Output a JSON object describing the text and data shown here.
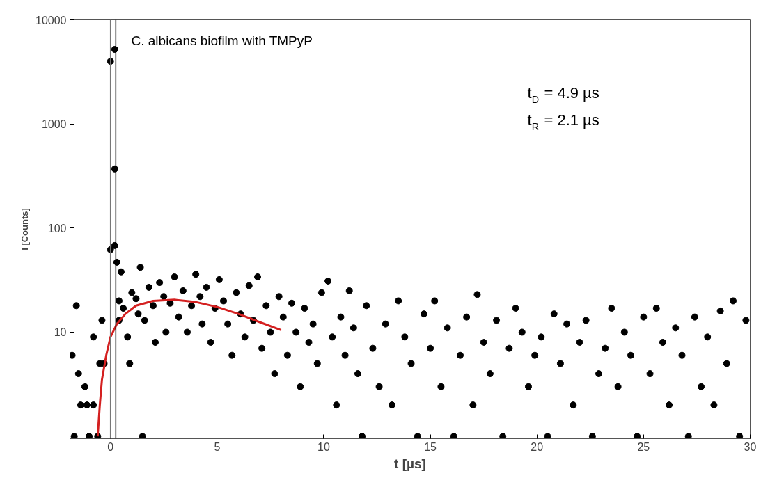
{
  "chart_data": {
    "type": "scatter",
    "xlabel": "t [µs]",
    "ylabel": "I [Counts]",
    "log": "y",
    "grid": false,
    "xlim": [
      -1.9,
      30
    ],
    "xticks": [
      0,
      5,
      10,
      15,
      20,
      25,
      30
    ],
    "ylim": [
      0.95,
      10000
    ],
    "yticks": [
      10,
      100,
      1000,
      10000
    ],
    "annotations": [
      "C. albicans biofilm with TMPyP",
      "t$_{D}$ = 4.9 µs",
      "t$_{R}$ = 2.1 µs"
    ],
    "ref_lines": [
      {
        "axis": "x",
        "value": 0,
        "label": null,
        "color": "#777777"
      },
      {
        "axis": "x",
        "value": 0.25,
        "label": null,
        "color": "#000000"
      }
    ],
    "series": [
      {
        "marker": "circle",
        "color": "#000000",
        "x": [
          -1.8,
          -1.7,
          -1.6,
          -1.5,
          -1.4,
          -1.2,
          -1.1,
          -1.0,
          -0.8,
          -0.8,
          -0.6,
          -0.5,
          -0.4,
          -0.3,
          0.0,
          0.0,
          0.2,
          0.2,
          0.2,
          0.3,
          0.4,
          0.4,
          0.5,
          0.6,
          0.8,
          0.9,
          1.0,
          1.2,
          1.3,
          1.4,
          1.5,
          1.6,
          1.8,
          2.0,
          2.1,
          2.3,
          2.5,
          2.6,
          2.8,
          3.0,
          3.2,
          3.4,
          3.6,
          3.8,
          4.0,
          4.2,
          4.3,
          4.5,
          4.7,
          4.9,
          5.1,
          5.3,
          5.5,
          5.7,
          5.9,
          6.1,
          6.3,
          6.5,
          6.7,
          6.9,
          7.1,
          7.3,
          7.5,
          7.7,
          7.9,
          8.1,
          8.3,
          8.5,
          8.7,
          8.9,
          9.1,
          9.3,
          9.5,
          9.7,
          9.9,
          10.2,
          10.4,
          10.6,
          10.8,
          11.0,
          11.2,
          11.4,
          11.6,
          11.8,
          12.0,
          12.3,
          12.6,
          12.9,
          13.2,
          13.5,
          13.8,
          14.1,
          14.4,
          14.7,
          15.0,
          15.2,
          15.5,
          15.8,
          16.1,
          16.4,
          16.7,
          17.0,
          17.2,
          17.5,
          17.8,
          18.1,
          18.4,
          18.7,
          19.0,
          19.3,
          19.6,
          19.9,
          20.2,
          20.5,
          20.8,
          21.1,
          21.4,
          21.7,
          22.0,
          22.3,
          22.6,
          22.9,
          23.2,
          23.5,
          23.8,
          24.1,
          24.4,
          24.7,
          25.0,
          25.3,
          25.6,
          25.9,
          26.2,
          26.5,
          26.8,
          27.1,
          27.4,
          27.7,
          28.0,
          28.3,
          28.6,
          28.9,
          29.2,
          29.5,
          29.8
        ],
        "values": [
          6,
          1,
          18,
          4,
          2,
          3,
          2,
          1,
          9,
          2,
          1,
          5,
          13,
          5,
          62,
          4000,
          5200,
          370,
          68,
          47,
          20,
          13,
          38,
          17,
          9,
          5,
          24,
          21,
          15,
          42,
          1,
          13,
          27,
          18,
          8,
          30,
          22,
          10,
          19,
          34,
          14,
          25,
          10,
          18,
          36,
          22,
          12,
          27,
          8,
          17,
          32,
          20,
          12,
          6,
          24,
          15,
          9,
          28,
          13,
          34,
          7,
          18,
          10,
          4,
          22,
          14,
          6,
          19,
          10,
          3,
          17,
          8,
          12,
          5,
          24,
          31,
          9,
          2,
          14,
          6,
          25,
          11,
          4,
          1,
          18,
          7,
          3,
          12,
          2,
          20,
          9,
          5,
          1,
          15,
          7,
          20,
          3,
          11,
          1,
          6,
          14,
          2,
          23,
          8,
          4,
          13,
          1,
          7,
          17,
          10,
          3,
          6,
          9,
          1,
          15,
          5,
          12,
          2,
          8,
          13,
          1,
          4,
          7,
          17,
          3,
          10,
          6,
          1,
          14,
          4,
          17,
          8,
          2,
          11,
          6,
          1,
          14,
          3,
          9,
          2,
          16,
          5,
          20,
          1,
          13
        ]
      },
      {
        "type": "line",
        "marker": "none",
        "color": "#d42020",
        "x": [
          -0.6,
          -0.5,
          -0.4,
          -0.2,
          0,
          0.3,
          0.7,
          1.2,
          2,
          3,
          4,
          5,
          6,
          7,
          8
        ],
        "values": [
          1,
          2,
          3.5,
          6,
          9,
          12,
          15,
          18,
          20,
          20.5,
          19.5,
          17.5,
          15,
          12.5,
          10.5
        ]
      }
    ]
  }
}
